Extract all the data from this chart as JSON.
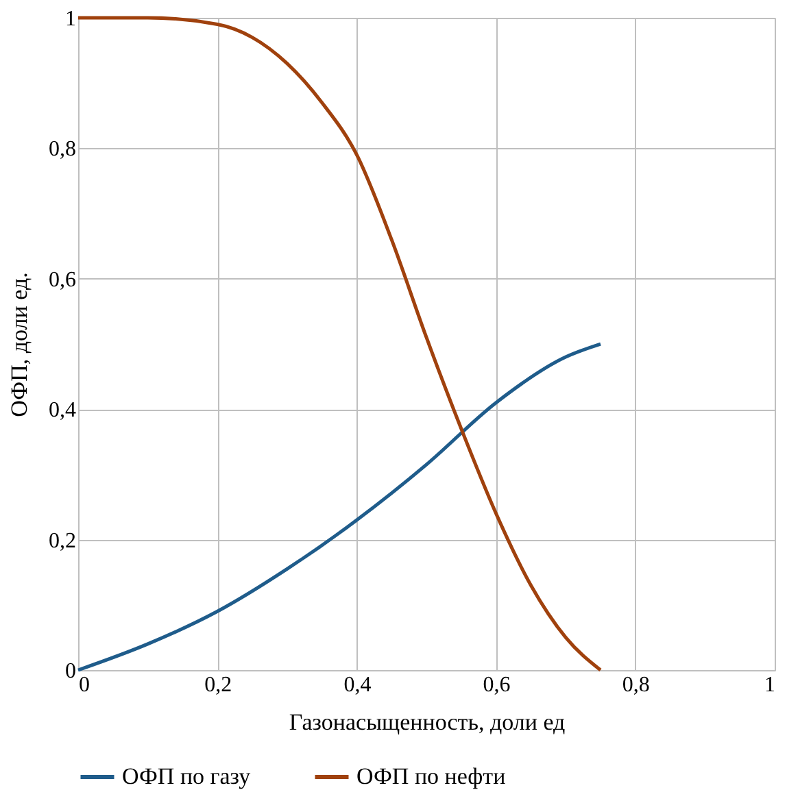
{
  "chart_data": {
    "type": "line",
    "xlabel": "Газонасыщенность, доли ед",
    "ylabel": "ОФП, доли ед.",
    "xlim": [
      0,
      1
    ],
    "ylim": [
      0,
      1
    ],
    "xticks": [
      0,
      {
        "value": 0.2,
        "label": "0,2"
      },
      {
        "value": 0.4,
        "label": "0,4"
      },
      {
        "value": 0.6,
        "label": "0,6"
      },
      {
        "value": 0.8,
        "label": "0,8"
      },
      1
    ],
    "yticks": [
      0,
      {
        "value": 0.2,
        "label": "0,2"
      },
      {
        "value": 0.4,
        "label": "0,4"
      },
      {
        "value": 0.6,
        "label": "0,6"
      },
      {
        "value": 0.8,
        "label": "0,8"
      },
      1
    ],
    "grid": true,
    "legend": "bottom",
    "marker": "none",
    "line_style": "solid",
    "series": [
      {
        "name": "ОФП по газу",
        "color": "#1f5c8b",
        "x": [
          0,
          0.1,
          0.2,
          0.3,
          0.4,
          0.5,
          0.6,
          0.7,
          0.75
        ],
        "values": [
          0,
          0.04,
          0.09,
          0.155,
          0.23,
          0.315,
          0.41,
          0.48,
          0.5
        ]
      },
      {
        "name": "ОФП по нефти",
        "color": "#a0410d",
        "x": [
          0,
          0.1,
          0.2,
          0.25,
          0.3,
          0.35,
          0.4,
          0.45,
          0.5,
          0.55,
          0.6,
          0.65,
          0.7,
          0.75
        ],
        "values": [
          1,
          1,
          0.99,
          0.97,
          0.93,
          0.87,
          0.79,
          0.66,
          0.51,
          0.37,
          0.24,
          0.13,
          0.05,
          0
        ]
      }
    ]
  }
}
